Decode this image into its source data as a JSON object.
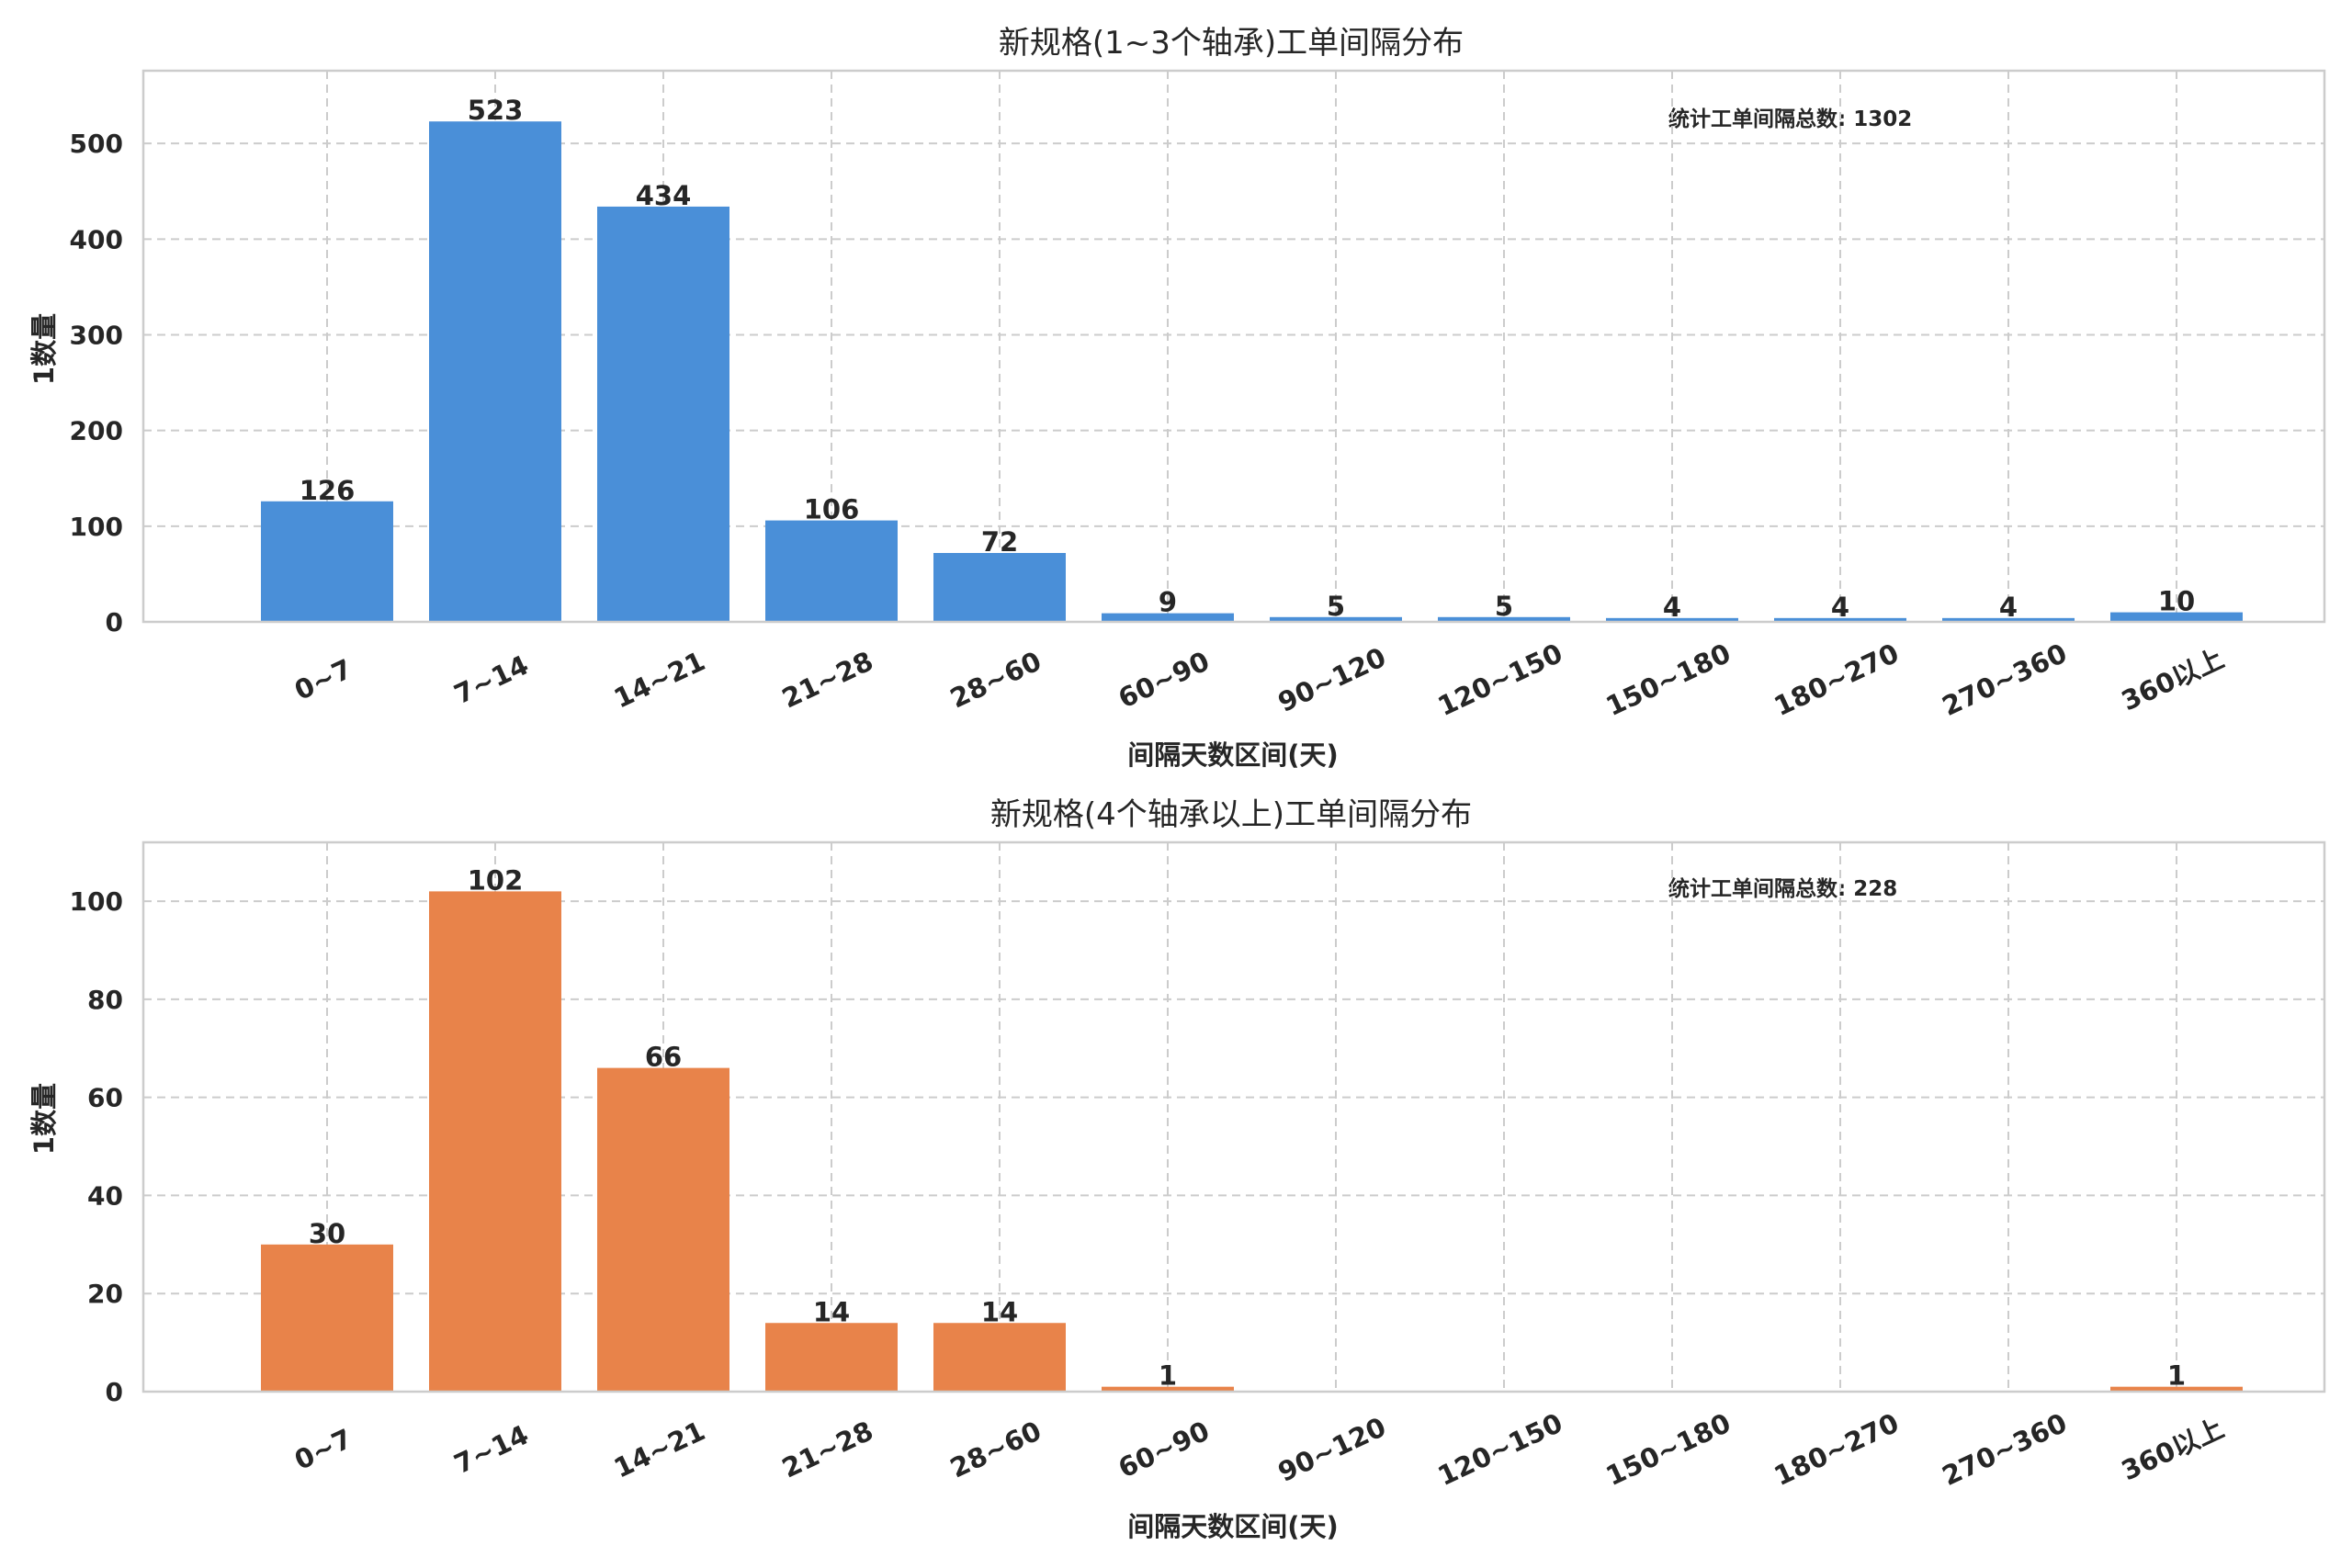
{
  "chart_data": [
    {
      "type": "bar",
      "title": "新规格(1~3个轴承)工单间隔分布",
      "xlabel": "间隔天数区间(天)",
      "ylabel": "1数量",
      "categories": [
        "0~7",
        "7~14",
        "14~21",
        "21~28",
        "28~60",
        "60~90",
        "90~120",
        "120~150",
        "150~180",
        "180~270",
        "270~360",
        "360以上"
      ],
      "values": [
        126,
        523,
        434,
        106,
        72,
        9,
        5,
        5,
        4,
        4,
        4,
        10
      ],
      "data_labels": [
        "126",
        "523",
        "434",
        "106",
        "72",
        "9",
        "5",
        "5",
        "4",
        "4",
        "4",
        "10"
      ],
      "yticks": [
        0,
        100,
        200,
        300,
        400,
        500
      ],
      "ylim": [
        0,
        576
      ],
      "grid": true,
      "color": "#4a8fd8",
      "annotation": "统计工单间隔总数: 1302"
    },
    {
      "type": "bar",
      "title": "新规格(4个轴承以上)工单间隔分布",
      "xlabel": "间隔天数区间(天)",
      "ylabel": "1数量",
      "categories": [
        "0~7",
        "7~14",
        "14~21",
        "21~28",
        "28~60",
        "60~90",
        "90~120",
        "120~150",
        "150~180",
        "180~270",
        "270~360",
        "360以上"
      ],
      "values": [
        30,
        102,
        66,
        14,
        14,
        1,
        0,
        0,
        0,
        0,
        0,
        1
      ],
      "data_labels": [
        "30",
        "102",
        "66",
        "14",
        "14",
        "1",
        "",
        "",
        "",
        "",
        "",
        "1"
      ],
      "yticks": [
        0,
        20,
        40,
        60,
        80,
        100
      ],
      "ylim": [
        0,
        112
      ],
      "grid": true,
      "color": "#e8834a",
      "annotation": "统计工单间隔总数: 228"
    }
  ]
}
